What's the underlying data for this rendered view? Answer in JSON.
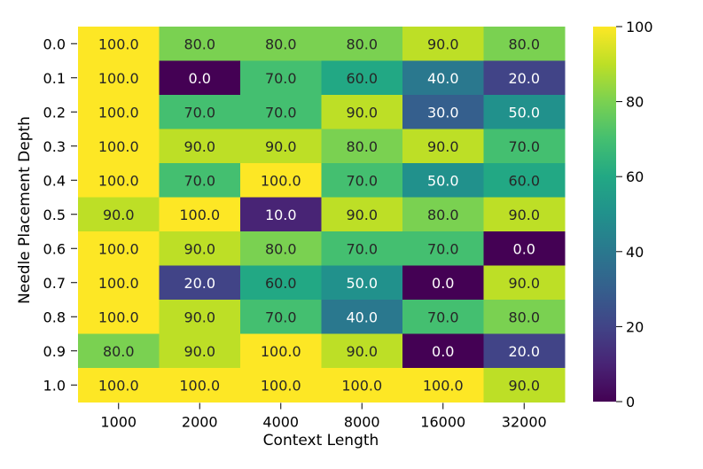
{
  "chart_data": {
    "type": "heatmap",
    "title": "",
    "xlabel": "Context Length",
    "ylabel": "Needle Placement Depth",
    "x_categories": [
      "1000",
      "2000",
      "4000",
      "8000",
      "16000",
      "32000"
    ],
    "y_categories": [
      "0.0",
      "0.1",
      "0.2",
      "0.3",
      "0.4",
      "0.5",
      "0.6",
      "0.7",
      "0.8",
      "0.9",
      "1.0"
    ],
    "values": [
      [
        100.0,
        80.0,
        80.0,
        80.0,
        90.0,
        80.0
      ],
      [
        100.0,
        0.0,
        70.0,
        60.0,
        40.0,
        20.0
      ],
      [
        100.0,
        70.0,
        70.0,
        90.0,
        30.0,
        50.0
      ],
      [
        100.0,
        90.0,
        90.0,
        80.0,
        90.0,
        70.0
      ],
      [
        100.0,
        70.0,
        100.0,
        70.0,
        50.0,
        60.0
      ],
      [
        90.0,
        100.0,
        10.0,
        90.0,
        80.0,
        90.0
      ],
      [
        100.0,
        90.0,
        80.0,
        70.0,
        70.0,
        0.0
      ],
      [
        100.0,
        20.0,
        60.0,
        50.0,
        0.0,
        90.0
      ],
      [
        100.0,
        90.0,
        70.0,
        40.0,
        70.0,
        80.0
      ],
      [
        80.0,
        90.0,
        100.0,
        90.0,
        0.0,
        20.0
      ],
      [
        100.0,
        100.0,
        100.0,
        100.0,
        100.0,
        90.0
      ]
    ],
    "value_range": [
      0,
      100
    ],
    "colormap": "viridis",
    "colorbar": {
      "ticks": [
        "0",
        "20",
        "40",
        "60",
        "80",
        "100"
      ]
    },
    "cell_label_colors": {
      "dark_text": "#262626",
      "light_text": "#ffffff"
    }
  }
}
